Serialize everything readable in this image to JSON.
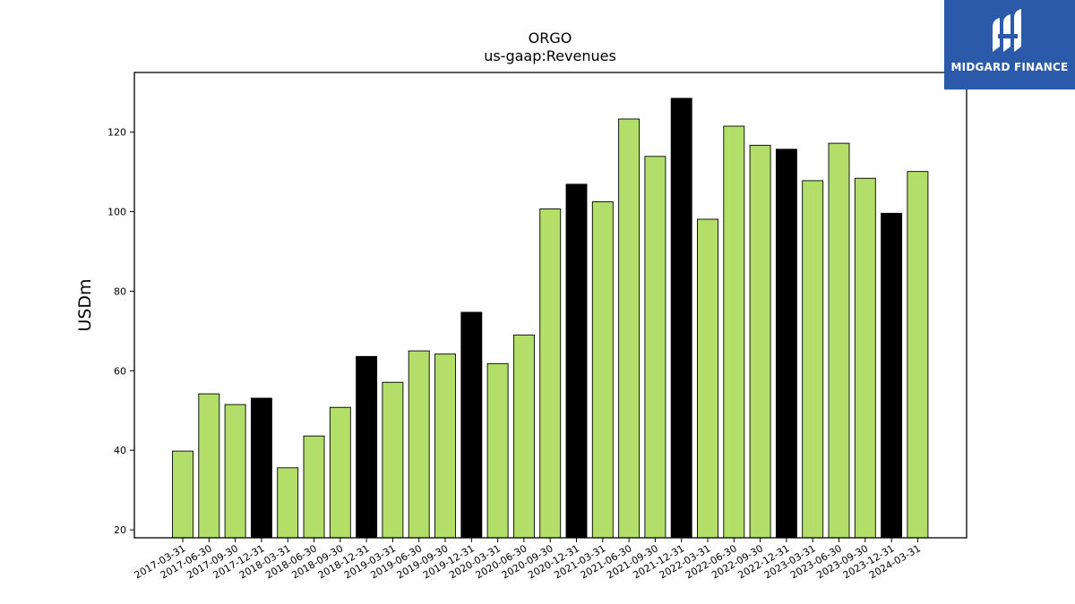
{
  "chart_data": {
    "type": "bar",
    "title": "ORGO",
    "subtitle": "us-gaap:Revenues",
    "ylabel": "USDm",
    "xlabel": "",
    "ylim": [
      18,
      135
    ],
    "yticks": [
      20,
      40,
      60,
      80,
      100,
      120
    ],
    "grid": false,
    "categories": [
      "2017-03-31",
      "2017-06-30",
      "2017-09-30",
      "2017-12-31",
      "2018-03-31",
      "2018-06-30",
      "2018-09-30",
      "2018-12-31",
      "2019-03-31",
      "2019-06-30",
      "2019-09-30",
      "2019-12-31",
      "2020-03-31",
      "2020-06-30",
      "2020-09-30",
      "2020-12-31",
      "2021-03-31",
      "2021-06-30",
      "2021-09-30",
      "2021-12-31",
      "2022-03-31",
      "2022-06-30",
      "2022-09-30",
      "2022-12-31",
      "2023-03-31",
      "2023-06-30",
      "2023-09-30",
      "2023-12-31",
      "2024-03-31"
    ],
    "values": [
      39.8,
      54.2,
      51.5,
      53.1,
      35.6,
      43.6,
      50.8,
      63.6,
      57.1,
      65.0,
      64.2,
      74.7,
      61.8,
      69.0,
      100.7,
      106.9,
      102.5,
      123.3,
      113.9,
      128.5,
      98.1,
      121.5,
      116.7,
      115.7,
      107.8,
      117.2,
      108.4,
      99.6,
      110.1
    ],
    "colors": {
      "quarter": "#b3de69",
      "year_end": "#000000",
      "edge": "#000000"
    }
  },
  "logo": {
    "text": "MIDGARD FINANCE",
    "background": "#2b5aab"
  }
}
